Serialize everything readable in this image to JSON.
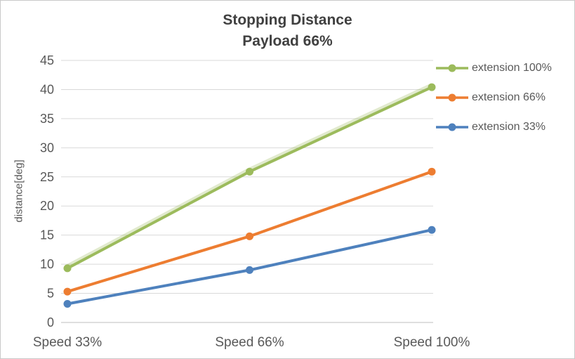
{
  "chart_data": {
    "type": "line",
    "title": "Stopping Distance",
    "subtitle": "Payload 66%",
    "xlabel": "",
    "ylabel": "distance[deg]",
    "ylim": [
      0,
      45
    ],
    "ytick_step": 5,
    "grid": true,
    "legend_position": "right",
    "categories": [
      "Speed 33%",
      "Speed 66%",
      "Speed 100%"
    ],
    "series": [
      {
        "name": "extension 100%",
        "color": "#9CBB5C",
        "values": [
          9.3,
          25.9,
          40.4
        ],
        "halo": true
      },
      {
        "name": "extension 66%",
        "color": "#ED7D31",
        "values": [
          5.3,
          14.8,
          25.9
        ]
      },
      {
        "name": "extension 33%",
        "color": "#4E81BD",
        "values": [
          3.2,
          9.0,
          15.9
        ]
      }
    ]
  }
}
